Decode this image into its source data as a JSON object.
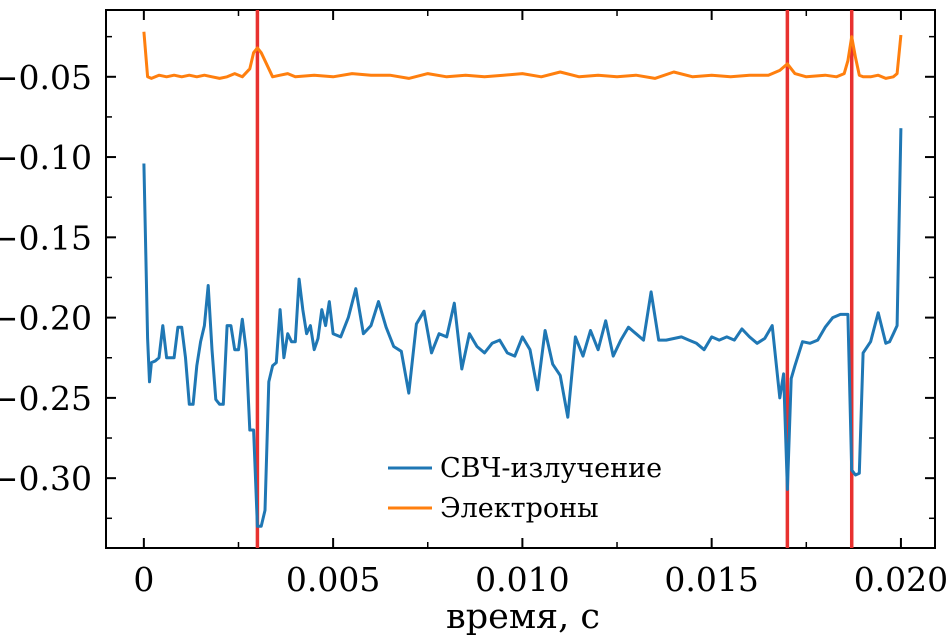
{
  "chart_data": {
    "type": "line",
    "title": "",
    "xlabel": "время, с",
    "ylabel": "",
    "xlim": [
      -0.001,
      0.0209
    ],
    "ylim": [
      -0.3435,
      -0.0084
    ],
    "xticks": [
      0,
      0.005,
      0.01,
      0.015,
      0.02
    ],
    "xtick_labels": [
      "0",
      "0.005",
      "0.010",
      "0.015",
      "0.020"
    ],
    "yticks": [
      -0.05,
      -0.1,
      -0.15,
      -0.2,
      -0.25,
      -0.3
    ],
    "ytick_labels": [
      "−0.05",
      "−0.10",
      "−0.15",
      "−0.20",
      "−0.25",
      "−0.30"
    ],
    "grid": false,
    "legend_location": "lower center",
    "vlines": {
      "x": [
        0.003,
        0.017,
        0.0187
      ],
      "color": "#e8312f"
    },
    "series": [
      {
        "name": "СВЧ-излучение",
        "color": "#1f77b4",
        "x": [
          0,
          0.0001,
          0.00015,
          0.0002,
          0.0003,
          0.0004,
          0.0005,
          0.0006,
          0.0007,
          0.0008,
          0.0009,
          0.001,
          0.0011,
          0.0012,
          0.0013,
          0.0014,
          0.0015,
          0.0016,
          0.0017,
          0.0018,
          0.0019,
          0.002,
          0.0021,
          0.0022,
          0.0023,
          0.0024,
          0.0025,
          0.0026,
          0.0027,
          0.0028,
          0.0029,
          0.003,
          0.0031,
          0.0032,
          0.0033,
          0.0034,
          0.0035,
          0.0036,
          0.0037,
          0.0038,
          0.0039,
          0.004,
          0.0041,
          0.0042,
          0.0043,
          0.0044,
          0.0045,
          0.0046,
          0.0047,
          0.0048,
          0.0049,
          0.005,
          0.0052,
          0.0054,
          0.0056,
          0.0058,
          0.006,
          0.0062,
          0.0064,
          0.0066,
          0.0068,
          0.007,
          0.0072,
          0.0074,
          0.0076,
          0.0078,
          0.008,
          0.0082,
          0.0084,
          0.0086,
          0.0088,
          0.009,
          0.0092,
          0.0094,
          0.0096,
          0.0098,
          0.01,
          0.0102,
          0.0104,
          0.0106,
          0.0108,
          0.011,
          0.0112,
          0.0114,
          0.0116,
          0.0118,
          0.012,
          0.0122,
          0.0124,
          0.0126,
          0.0128,
          0.013,
          0.0132,
          0.0134,
          0.0136,
          0.0138,
          0.014,
          0.0142,
          0.0144,
          0.0146,
          0.0148,
          0.015,
          0.0152,
          0.0154,
          0.0156,
          0.0158,
          0.016,
          0.0162,
          0.0164,
          0.0166,
          0.0168,
          0.0169,
          0.017,
          0.0171,
          0.0172,
          0.0174,
          0.0176,
          0.0178,
          0.018,
          0.0182,
          0.0184,
          0.0186,
          0.0187,
          0.0188,
          0.0189,
          0.019,
          0.0192,
          0.0194,
          0.0196,
          0.0197,
          0.0198,
          0.0199,
          0.02
        ],
        "y": [
          -0.104,
          -0.213,
          -0.24,
          -0.228,
          -0.227,
          -0.225,
          -0.205,
          -0.225,
          -0.225,
          -0.225,
          -0.206,
          -0.206,
          -0.225,
          -0.254,
          -0.254,
          -0.23,
          -0.215,
          -0.205,
          -0.18,
          -0.22,
          -0.251,
          -0.254,
          -0.254,
          -0.205,
          -0.205,
          -0.22,
          -0.22,
          -0.201,
          -0.22,
          -0.27,
          -0.27,
          -0.33,
          -0.33,
          -0.32,
          -0.24,
          -0.23,
          -0.228,
          -0.195,
          -0.225,
          -0.21,
          -0.215,
          -0.215,
          -0.176,
          -0.195,
          -0.21,
          -0.205,
          -0.22,
          -0.213,
          -0.195,
          -0.205,
          -0.19,
          -0.21,
          -0.212,
          -0.2,
          -0.182,
          -0.21,
          -0.205,
          -0.19,
          -0.206,
          -0.218,
          -0.221,
          -0.247,
          -0.204,
          -0.196,
          -0.222,
          -0.21,
          -0.212,
          -0.191,
          -0.232,
          -0.21,
          -0.218,
          -0.222,
          -0.216,
          -0.214,
          -0.222,
          -0.224,
          -0.212,
          -0.22,
          -0.245,
          -0.208,
          -0.229,
          -0.236,
          -0.262,
          -0.212,
          -0.224,
          -0.208,
          -0.22,
          -0.202,
          -0.224,
          -0.214,
          -0.206,
          -0.21,
          -0.214,
          -0.184,
          -0.214,
          -0.214,
          -0.213,
          -0.212,
          -0.214,
          -0.216,
          -0.22,
          -0.212,
          -0.214,
          -0.212,
          -0.214,
          -0.207,
          -0.212,
          -0.216,
          -0.213,
          -0.205,
          -0.25,
          -0.235,
          -0.307,
          -0.238,
          -0.23,
          -0.215,
          -0.216,
          -0.214,
          -0.206,
          -0.2,
          -0.198,
          -0.198,
          -0.295,
          -0.298,
          -0.297,
          -0.222,
          -0.215,
          -0.197,
          -0.216,
          -0.215,
          -0.21,
          -0.205,
          -0.082
        ]
      },
      {
        "name": "Электроны",
        "color": "#ff7f0e",
        "x": [
          0,
          0.0001,
          0.0002,
          0.0004,
          0.0006,
          0.0008,
          0.001,
          0.0012,
          0.0014,
          0.0016,
          0.0018,
          0.002,
          0.0022,
          0.0024,
          0.0026,
          0.0028,
          0.0029,
          0.003,
          0.0031,
          0.0032,
          0.0034,
          0.0036,
          0.0038,
          0.004,
          0.0045,
          0.005,
          0.0055,
          0.006,
          0.0065,
          0.007,
          0.0075,
          0.008,
          0.0085,
          0.009,
          0.0095,
          0.01,
          0.0105,
          0.011,
          0.0115,
          0.012,
          0.0125,
          0.013,
          0.0135,
          0.014,
          0.0145,
          0.015,
          0.0155,
          0.016,
          0.0165,
          0.0168,
          0.017,
          0.0172,
          0.0175,
          0.018,
          0.0183,
          0.0185,
          0.0186,
          0.0187,
          0.0188,
          0.0189,
          0.019,
          0.0192,
          0.0194,
          0.0196,
          0.0198,
          0.0199,
          0.02
        ],
        "y": [
          -0.022,
          -0.05,
          -0.051,
          -0.049,
          -0.05,
          -0.049,
          -0.05,
          -0.049,
          -0.05,
          -0.049,
          -0.05,
          -0.051,
          -0.05,
          -0.048,
          -0.05,
          -0.045,
          -0.035,
          -0.032,
          -0.035,
          -0.04,
          -0.05,
          -0.049,
          -0.048,
          -0.05,
          -0.049,
          -0.05,
          -0.048,
          -0.049,
          -0.049,
          -0.051,
          -0.048,
          -0.05,
          -0.049,
          -0.05,
          -0.049,
          -0.048,
          -0.05,
          -0.047,
          -0.05,
          -0.049,
          -0.05,
          -0.049,
          -0.051,
          -0.047,
          -0.05,
          -0.049,
          -0.05,
          -0.049,
          -0.049,
          -0.046,
          -0.042,
          -0.048,
          -0.05,
          -0.049,
          -0.05,
          -0.048,
          -0.04,
          -0.025,
          -0.038,
          -0.049,
          -0.05,
          -0.05,
          -0.049,
          -0.051,
          -0.05,
          -0.048,
          -0.024
        ]
      }
    ]
  }
}
